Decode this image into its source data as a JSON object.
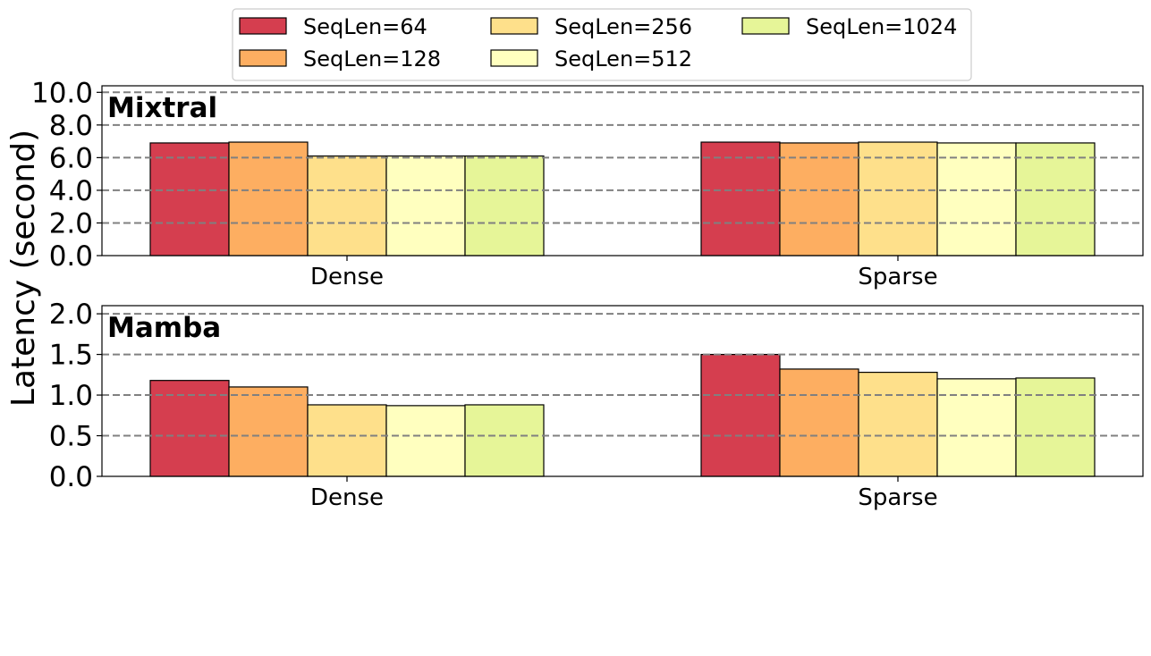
{
  "figure": {
    "ylabel": "Latency (second)"
  },
  "legend": {
    "placement": "top-center",
    "columns": 3
  },
  "chart_data": [
    {
      "type": "bar",
      "title": "Mixtral",
      "categories": [
        "Dense",
        "Sparse"
      ],
      "ylabel": "Latency (second)",
      "ylim": [
        0,
        10.4
      ],
      "yticks": [
        0.0,
        2.0,
        4.0,
        6.0,
        8.0,
        10.0
      ],
      "ytick_labels": [
        "0.0",
        "2.0",
        "4.0",
        "6.0",
        "8.0",
        "10.0"
      ],
      "grid": "horizontal dashed at ticks",
      "series": [
        {
          "name": "SeqLen=64",
          "color": "#d53e4f",
          "values": [
            6.9,
            6.95
          ]
        },
        {
          "name": "SeqLen=128",
          "color": "#fdae61",
          "values": [
            6.95,
            6.9
          ]
        },
        {
          "name": "SeqLen=256",
          "color": "#fee08b",
          "values": [
            6.1,
            6.95
          ]
        },
        {
          "name": "SeqLen=512",
          "color": "#ffffbf",
          "values": [
            6.1,
            6.9
          ]
        },
        {
          "name": "SeqLen=1024",
          "color": "#e6f598",
          "values": [
            6.1,
            6.9
          ]
        }
      ]
    },
    {
      "type": "bar",
      "title": "Mamba",
      "categories": [
        "Dense",
        "Sparse"
      ],
      "ylabel": "Latency (second)",
      "ylim": [
        0,
        2.1
      ],
      "yticks": [
        0.0,
        0.5,
        1.0,
        1.5,
        2.0
      ],
      "ytick_labels": [
        "0.0",
        "0.5",
        "1.0",
        "1.5",
        "2.0"
      ],
      "grid": "horizontal dashed at ticks",
      "series": [
        {
          "name": "SeqLen=64",
          "color": "#d53e4f",
          "values": [
            1.18,
            1.5
          ]
        },
        {
          "name": "SeqLen=128",
          "color": "#fdae61",
          "values": [
            1.1,
            1.32
          ]
        },
        {
          "name": "SeqLen=256",
          "color": "#fee08b",
          "values": [
            0.88,
            1.28
          ]
        },
        {
          "name": "SeqLen=512",
          "color": "#ffffbf",
          "values": [
            0.87,
            1.2
          ]
        },
        {
          "name": "SeqLen=1024",
          "color": "#e6f598",
          "values": [
            0.88,
            1.21
          ]
        }
      ]
    }
  ]
}
